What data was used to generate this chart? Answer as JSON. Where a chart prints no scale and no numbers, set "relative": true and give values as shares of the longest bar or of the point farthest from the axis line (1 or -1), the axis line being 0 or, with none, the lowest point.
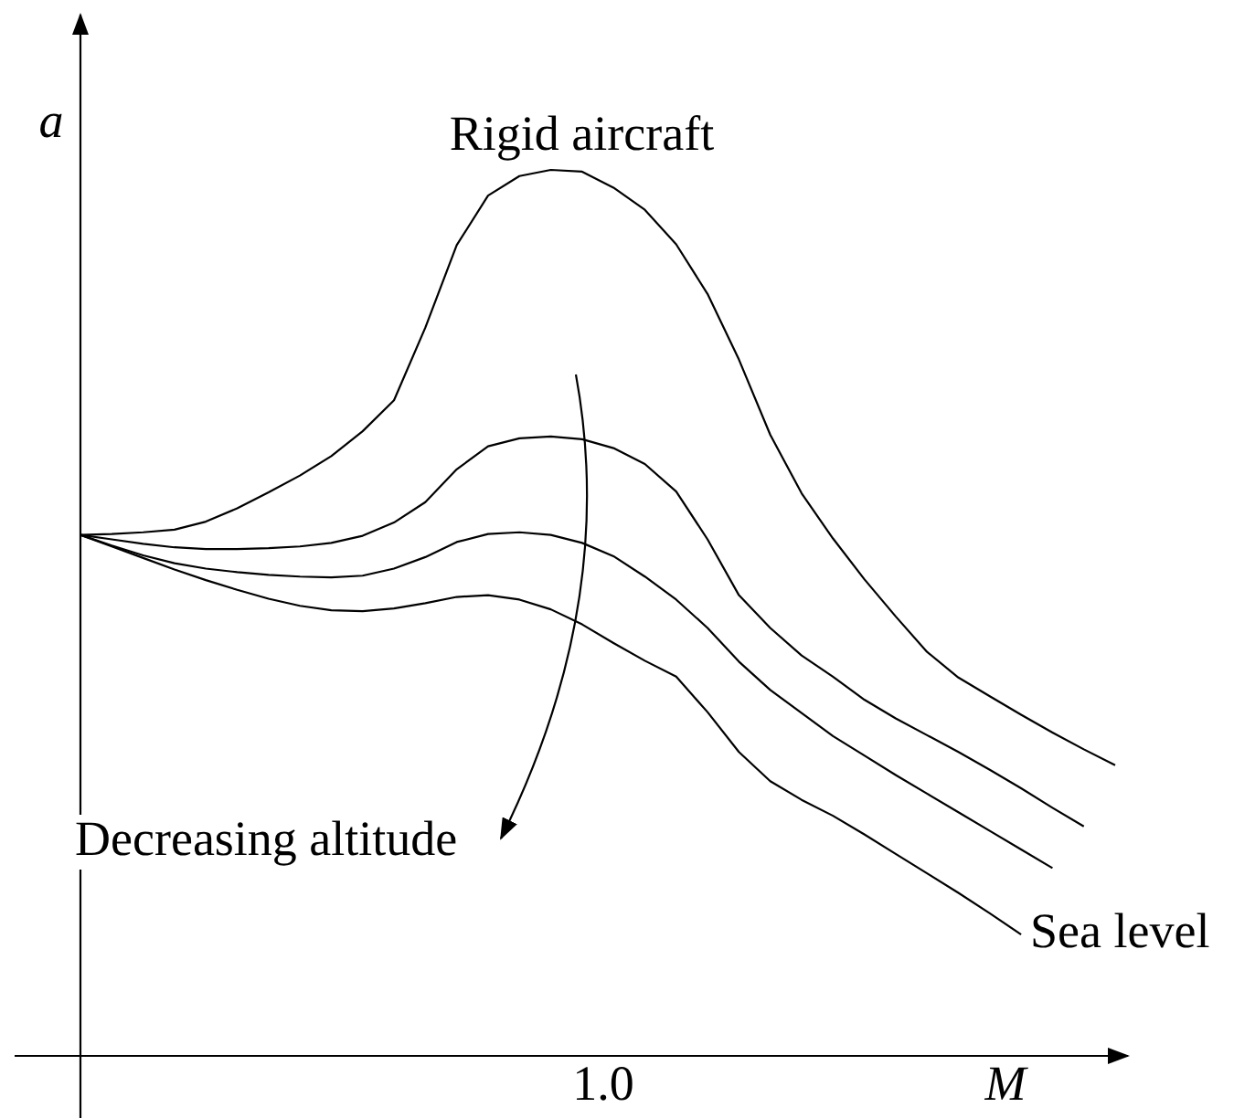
{
  "chart_data": {
    "type": "line",
    "relative": true,
    "xlabel": "M",
    "ylabel": "a",
    "annotations": [
      "Decreasing altitude",
      "1.0"
    ],
    "line_style": "solid",
    "categories": [
      null,
      null,
      null,
      null,
      null,
      null,
      null,
      null,
      null,
      null,
      null,
      null,
      null,
      null,
      null,
      null,
      null,
      null,
      null,
      null,
      null,
      null,
      null,
      null,
      null,
      null,
      null,
      null,
      null,
      null,
      null,
      null,
      null,
      null
    ],
    "series": [
      {
        "name": "Rigid aircraft",
        "color": "#000000",
        "values": [
          0.588,
          0.589,
          0.591,
          0.594,
          0.603,
          0.618,
          0.636,
          0.655,
          0.677,
          0.705,
          0.74,
          0.822,
          0.915,
          0.971,
          0.993,
          1.0,
          0.998,
          0.98,
          0.955,
          0.916,
          0.86,
          0.786,
          0.701,
          0.635,
          0.584,
          0.538,
          0.496,
          0.456,
          0.427,
          0.406,
          0.385,
          0.365,
          0.346,
          0.328
        ]
      },
      {
        "color": "#000000",
        "values": [
          0.588,
          0.583,
          0.578,
          0.574,
          0.572,
          0.572,
          0.573,
          0.575,
          0.579,
          0.587,
          0.602,
          0.625,
          0.662,
          0.688,
          0.697,
          0.699,
          0.696,
          0.686,
          0.668,
          0.637,
          0.583,
          0.52,
          0.483,
          0.452,
          0.428,
          0.402,
          0.381,
          0.362,
          0.343,
          0.323,
          0.302,
          0.28,
          0.259,
          null
        ]
      },
      {
        "color": "#000000",
        "values": [
          0.588,
          0.576,
          0.565,
          0.556,
          0.55,
          0.546,
          0.543,
          0.541,
          0.54,
          0.542,
          0.55,
          0.563,
          0.58,
          0.589,
          0.591,
          0.588,
          0.579,
          0.564,
          0.541,
          0.515,
          0.483,
          0.445,
          0.413,
          0.387,
          0.361,
          0.339,
          0.317,
          0.296,
          0.275,
          0.254,
          0.233,
          0.212,
          null,
          null
        ]
      },
      {
        "name": "Sea level",
        "color": "#000000",
        "values": [
          0.588,
          0.575,
          0.562,
          0.549,
          0.537,
          0.526,
          0.516,
          0.508,
          0.503,
          0.502,
          0.505,
          0.511,
          0.518,
          0.52,
          0.515,
          0.504,
          0.487,
          0.466,
          0.446,
          0.428,
          0.388,
          0.343,
          0.31,
          0.289,
          0.271,
          0.25,
          0.228,
          0.206,
          0.184,
          0.161,
          0.137,
          null,
          null,
          null
        ]
      }
    ]
  }
}
